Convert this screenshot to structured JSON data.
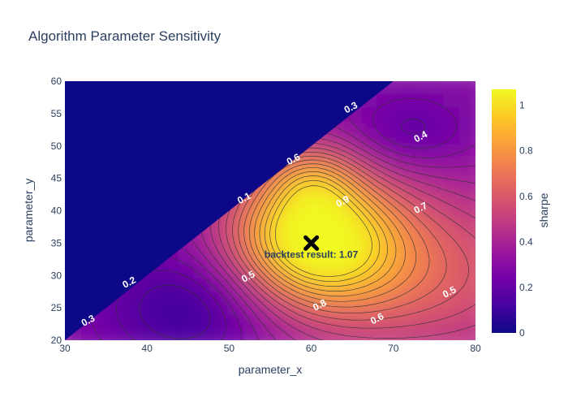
{
  "chart_data": {
    "type": "heatmap",
    "subtype": "contour",
    "title": "Algorithm Parameter Sensitivity",
    "xlabel": "parameter_x",
    "ylabel": "parameter_y",
    "xlim": [
      30,
      80
    ],
    "ylim": [
      20,
      60
    ],
    "x_ticks": [
      "30",
      "40",
      "50",
      "60",
      "70",
      "80"
    ],
    "y_ticks": [
      "20",
      "25",
      "30",
      "35",
      "40",
      "45",
      "50",
      "55",
      "60"
    ],
    "colorbar": {
      "title": "sharpe",
      "range": [
        0,
        1.07
      ],
      "ticks": [
        "0",
        "0.2",
        "0.4",
        "0.6",
        "0.8",
        "1"
      ],
      "colorscale": [
        "#0d0887",
        "#46039f",
        "#7201a8",
        "#9c179e",
        "#bd3786",
        "#d8576b",
        "#ed7953",
        "#fb9f3a",
        "#fdca26",
        "#f0f921"
      ]
    },
    "masked_region": "parameter_y > 20 + 0.8 * (parameter_x - 30)",
    "contour_labels": [
      {
        "text": "0.3",
        "x": 33,
        "y": 22.6
      },
      {
        "text": "0.2",
        "x": 38,
        "y": 28.5
      },
      {
        "text": "0.1",
        "x": 52,
        "y": 41.5
      },
      {
        "text": "0.6",
        "x": 58,
        "y": 47.5
      },
      {
        "text": "0.3",
        "x": 65,
        "y": 55.5
      },
      {
        "text": "0.4",
        "x": 73.5,
        "y": 51
      },
      {
        "text": "0.9",
        "x": 64,
        "y": 41
      },
      {
        "text": "0.7",
        "x": 73.5,
        "y": 40
      },
      {
        "text": "0.5",
        "x": 52.5,
        "y": 29.4
      },
      {
        "text": "0.8",
        "x": 61.2,
        "y": 25
      },
      {
        "text": "0.6",
        "x": 68.2,
        "y": 22.9
      },
      {
        "text": "0.5",
        "x": 77,
        "y": 27
      }
    ],
    "best_point": {
      "x": 60,
      "y": 35,
      "sharpe": 1.07
    },
    "annotation": "backtest result: 1.07"
  }
}
